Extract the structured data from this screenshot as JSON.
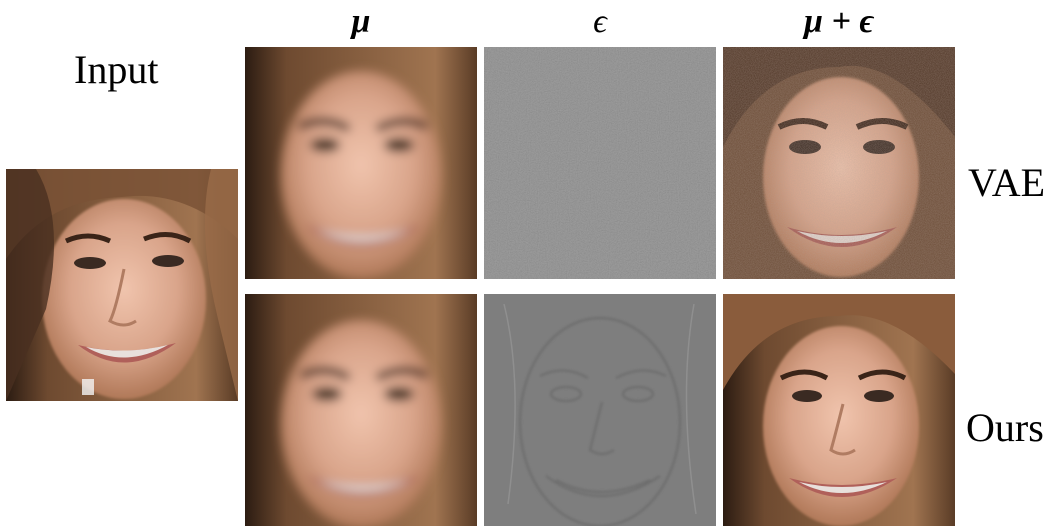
{
  "figure": {
    "input_label": "Input",
    "columns": [
      {
        "key": "mu",
        "label": "μ"
      },
      {
        "key": "eps",
        "label": "ϵ"
      },
      {
        "key": "mu_eps",
        "label": "μ + ϵ"
      }
    ],
    "rows": [
      {
        "key": "vae",
        "label": "VAE"
      },
      {
        "key": "ours",
        "label": "Ours"
      }
    ]
  },
  "colors": {
    "skin": "#d9a48a",
    "hair": "#8a5a3a",
    "dark_hair": "#3a2418",
    "noise_gray": "#8c8c8c",
    "residual_gray": "#7e7e7e",
    "lips": "#b0605a",
    "teeth": "#e8e0dc"
  }
}
